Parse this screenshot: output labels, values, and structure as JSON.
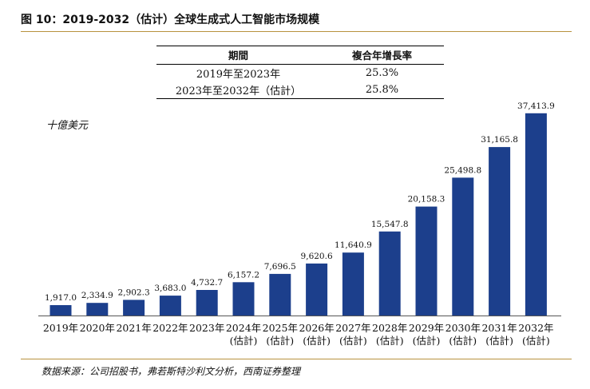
{
  "figure": {
    "title": "图 10：2019-2032（估计）全球生成式人工智能市场规模",
    "unit": "十億美元",
    "source": "数据来源：公司招股书，弗若斯特沙利文分析，西南证券整理"
  },
  "cagr_table": {
    "headers": [
      "期間",
      "複合年增長率"
    ],
    "rows": [
      {
        "period": "2019年至2023年",
        "rate": "25.3%"
      },
      {
        "period": "2023年至2032年（估計）",
        "rate": "25.8%"
      }
    ]
  },
  "colors": {
    "bar": "#1c3f8c",
    "rule": "#b8923f"
  },
  "chart_data": {
    "type": "bar",
    "ylabel": "十億美元",
    "ylim": [
      0,
      40000
    ],
    "categories": [
      [
        "2019年"
      ],
      [
        "2020年"
      ],
      [
        "2021年"
      ],
      [
        "2022年"
      ],
      [
        "2023年"
      ],
      [
        "2024年",
        "(估計)"
      ],
      [
        "2025年",
        "(估計)"
      ],
      [
        "2026年",
        "(估計)"
      ],
      [
        "2027年",
        "(估計)"
      ],
      [
        "2028年",
        "(估計)"
      ],
      [
        "2029年",
        "(估計)"
      ],
      [
        "2030年",
        "(估計)"
      ],
      [
        "2031年",
        "(估計)"
      ],
      [
        "2032年",
        "(估計)"
      ]
    ],
    "values": [
      1917.0,
      2334.9,
      2902.3,
      3683.0,
      4732.7,
      6157.2,
      7696.5,
      9620.6,
      11640.9,
      15547.8,
      20158.3,
      25498.8,
      31165.8,
      37413.9
    ],
    "data_labels": [
      "1,917.0",
      "2,334.9",
      "2,902.3",
      "3,683.0",
      "4,732.7",
      "6,157.2",
      "7,696.5",
      "9,620.6",
      "11,640.9",
      "15,547.8",
      "20,158.3",
      "25,498.8",
      "31,165.8",
      "37,413.9"
    ],
    "grid": false,
    "legend": "none"
  }
}
